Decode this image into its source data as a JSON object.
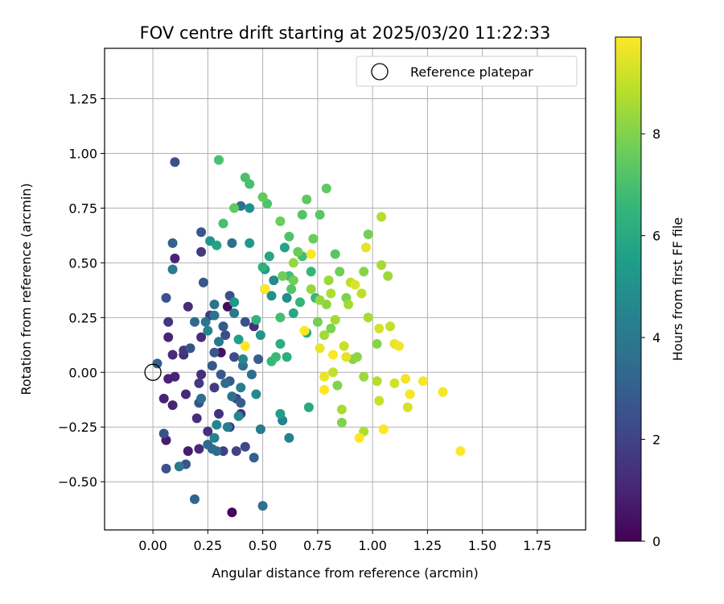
{
  "chart_data": {
    "type": "scatter",
    "title": "FOV centre drift starting at 2025/03/20 11:22:33",
    "xlabel": "Angular distance from reference (arcmin)",
    "ylabel": "Rotation from reference (arcmin)",
    "xlim": [
      -0.22,
      1.97
    ],
    "ylim": [
      -0.72,
      1.48
    ],
    "xticks": [
      "0.00",
      "0.25",
      "0.50",
      "0.75",
      "1.00",
      "1.25",
      "1.50",
      "1.75"
    ],
    "xtick_values": [
      0.0,
      0.25,
      0.5,
      0.75,
      1.0,
      1.25,
      1.5,
      1.75
    ],
    "yticks": [
      "−0.50",
      "−0.25",
      "0.00",
      "0.25",
      "0.50",
      "0.75",
      "1.00",
      "1.25"
    ],
    "ytick_values": [
      -0.5,
      -0.25,
      0.0,
      0.25,
      0.5,
      0.75,
      1.0,
      1.25
    ],
    "grid": true,
    "legend": {
      "placement": "top-right",
      "entries": [
        {
          "label": "Reference platepar",
          "marker": "open-circle"
        }
      ]
    },
    "reference_point": {
      "x": 0.0,
      "y": 0.0
    },
    "colorbar": {
      "label": "Hours from first FF file",
      "colormap": "viridis",
      "range": [
        0,
        9.9
      ],
      "ticks": [
        "0",
        "2",
        "4",
        "6",
        "8"
      ],
      "tick_values": [
        0,
        2,
        4,
        6,
        8
      ]
    },
    "colormap_stops": [
      "#440154",
      "#482878",
      "#3e4989",
      "#31688e",
      "#26828e",
      "#1f9e89",
      "#35b779",
      "#6ece58",
      "#b5de2b",
      "#fde725"
    ],
    "series": [
      {
        "color_by": "hours",
        "points": [
          [
            0.36,
            -0.64,
            0.2
          ],
          [
            0.34,
            0.3,
            0.3
          ],
          [
            0.31,
            0.09,
            0.4
          ],
          [
            0.06,
            -0.31,
            0.8
          ],
          [
            0.16,
            -0.36,
            0.8
          ],
          [
            0.05,
            -0.12,
            1.0
          ],
          [
            0.07,
            -0.03,
            1.0
          ],
          [
            0.1,
            -0.02,
            1.0
          ],
          [
            0.09,
            -0.15,
            1.0
          ],
          [
            0.07,
            0.16,
            1.0
          ],
          [
            0.1,
            0.52,
            1.0
          ],
          [
            0.15,
            -0.1,
            1.2
          ],
          [
            0.21,
            -0.35,
            1.2
          ],
          [
            0.2,
            -0.21,
            1.3
          ],
          [
            0.22,
            -0.01,
            1.3
          ],
          [
            0.09,
            0.08,
            1.3
          ],
          [
            0.14,
            0.08,
            1.3
          ],
          [
            0.16,
            0.3,
            1.3
          ],
          [
            0.22,
            0.16,
            1.3
          ],
          [
            0.25,
            -0.27,
            1.4
          ],
          [
            0.3,
            -0.19,
            1.4
          ],
          [
            0.35,
            -0.25,
            1.4
          ],
          [
            0.4,
            -0.19,
            1.4
          ],
          [
            0.46,
            0.21,
            1.4
          ],
          [
            0.07,
            0.23,
            1.6
          ],
          [
            0.14,
            0.1,
            1.6
          ],
          [
            0.21,
            -0.05,
            1.7
          ],
          [
            0.22,
            0.55,
            1.7
          ],
          [
            0.26,
            0.26,
            1.8
          ],
          [
            0.28,
            -0.07,
            1.8
          ],
          [
            0.32,
            -0.36,
            1.9
          ],
          [
            0.38,
            -0.36,
            2.0
          ],
          [
            0.38,
            -0.12,
            2.1
          ],
          [
            0.42,
            -0.34,
            2.2
          ],
          [
            0.37,
            0.07,
            2.3
          ],
          [
            0.33,
            0.17,
            2.3
          ],
          [
            0.35,
            0.35,
            2.4
          ],
          [
            0.42,
            0.23,
            2.4
          ],
          [
            0.06,
            0.34,
            2.5
          ],
          [
            0.05,
            -0.28,
            2.5
          ],
          [
            0.06,
            -0.44,
            2.5
          ],
          [
            0.1,
            0.96,
            2.5
          ],
          [
            0.15,
            -0.42,
            2.6
          ],
          [
            0.17,
            0.11,
            2.6
          ],
          [
            0.21,
            -0.14,
            2.6
          ],
          [
            0.22,
            0.64,
            2.7
          ],
          [
            0.23,
            0.41,
            2.7
          ],
          [
            0.27,
            0.03,
            2.7
          ],
          [
            0.28,
            0.09,
            2.7
          ],
          [
            0.31,
            -0.01,
            2.8
          ],
          [
            0.32,
            0.21,
            2.8
          ],
          [
            0.35,
            -0.04,
            2.8
          ],
          [
            0.4,
            -0.14,
            2.9
          ],
          [
            0.46,
            -0.39,
            3.0
          ],
          [
            0.48,
            0.06,
            3.0
          ],
          [
            0.02,
            0.04,
            3.1
          ],
          [
            0.09,
            0.59,
            3.1
          ],
          [
            0.19,
            -0.58,
            3.2
          ],
          [
            0.19,
            0.23,
            3.3
          ],
          [
            0.25,
            -0.33,
            3.4
          ],
          [
            0.27,
            -0.35,
            3.4
          ],
          [
            0.29,
            -0.36,
            3.5
          ],
          [
            0.33,
            -0.05,
            3.5
          ],
          [
            0.36,
            -0.11,
            3.6
          ],
          [
            0.41,
            0.03,
            3.6
          ],
          [
            0.45,
            -0.01,
            3.6
          ],
          [
            0.5,
            -0.61,
            3.7
          ],
          [
            0.22,
            -0.12,
            3.7
          ],
          [
            0.36,
            0.59,
            3.7
          ],
          [
            0.4,
            0.76,
            3.7
          ],
          [
            0.28,
            0.26,
            3.8
          ],
          [
            0.28,
            0.31,
            3.8
          ],
          [
            0.24,
            0.23,
            3.9
          ],
          [
            0.3,
            0.14,
            4.0
          ],
          [
            0.37,
            0.27,
            4.0
          ],
          [
            0.12,
            -0.43,
            4.0
          ],
          [
            0.09,
            0.47,
            4.1
          ],
          [
            0.49,
            -0.26,
            4.1
          ],
          [
            0.51,
            0.38,
            4.2
          ],
          [
            0.34,
            -0.25,
            4.2
          ],
          [
            0.28,
            -0.3,
            4.3
          ],
          [
            0.4,
            -0.07,
            4.3
          ],
          [
            0.59,
            -0.22,
            4.4
          ],
          [
            0.62,
            -0.3,
            4.4
          ],
          [
            0.25,
            0.19,
            4.5
          ],
          [
            0.29,
            -0.24,
            4.5
          ],
          [
            0.39,
            -0.2,
            4.6
          ],
          [
            0.41,
            0.06,
            4.6
          ],
          [
            0.47,
            -0.1,
            4.7
          ],
          [
            0.55,
            0.42,
            4.7
          ],
          [
            0.61,
            0.34,
            4.8
          ],
          [
            0.44,
            0.75,
            4.9
          ],
          [
            0.54,
            0.35,
            5.0
          ],
          [
            0.49,
            0.17,
            5.1
          ],
          [
            0.26,
            0.6,
            5.2
          ],
          [
            0.37,
            0.32,
            5.2
          ],
          [
            0.44,
            0.59,
            5.3
          ],
          [
            0.51,
            0.47,
            5.4
          ],
          [
            0.58,
            -0.19,
            5.5
          ],
          [
            0.39,
            0.15,
            5.6
          ],
          [
            0.29,
            0.58,
            5.7
          ],
          [
            0.6,
            0.57,
            5.7
          ],
          [
            0.53,
            0.53,
            5.8
          ],
          [
            0.64,
            0.27,
            5.9
          ],
          [
            0.71,
            -0.16,
            6.0
          ],
          [
            0.7,
            0.18,
            6.1
          ],
          [
            0.61,
            0.07,
            6.2
          ],
          [
            0.58,
            0.13,
            6.2
          ],
          [
            0.5,
            0.48,
            6.3
          ],
          [
            0.47,
            0.24,
            6.4
          ],
          [
            0.67,
            0.32,
            6.5
          ],
          [
            0.72,
            0.46,
            6.5
          ],
          [
            0.74,
            0.34,
            6.6
          ],
          [
            0.54,
            0.05,
            6.6
          ],
          [
            0.56,
            0.07,
            6.7
          ],
          [
            0.62,
            0.44,
            6.8
          ],
          [
            0.68,
            0.53,
            6.9
          ],
          [
            0.58,
            0.25,
            6.9
          ],
          [
            0.3,
            0.97,
            7.0
          ],
          [
            0.32,
            0.68,
            7.0
          ],
          [
            0.44,
            0.86,
            7.0
          ],
          [
            0.42,
            0.89,
            7.0
          ],
          [
            0.52,
            0.77,
            7.1
          ],
          [
            0.62,
            0.62,
            7.1
          ],
          [
            0.63,
            0.38,
            7.2
          ],
          [
            0.68,
            0.72,
            7.2
          ],
          [
            0.76,
            0.72,
            7.3
          ],
          [
            0.83,
            0.54,
            7.3
          ],
          [
            0.7,
            0.79,
            7.4
          ],
          [
            0.79,
            0.84,
            7.4
          ],
          [
            0.37,
            0.75,
            7.4
          ],
          [
            0.5,
            0.8,
            7.5
          ],
          [
            0.58,
            0.69,
            7.6
          ],
          [
            0.66,
            0.55,
            7.6
          ],
          [
            0.73,
            0.61,
            7.6
          ],
          [
            0.64,
            0.42,
            7.7
          ],
          [
            0.59,
            0.44,
            7.7
          ],
          [
            0.85,
            0.46,
            7.7
          ],
          [
            0.98,
            0.63,
            7.8
          ],
          [
            0.75,
            0.23,
            7.8
          ],
          [
            0.81,
            0.2,
            7.9
          ],
          [
            0.88,
            0.34,
            7.9
          ],
          [
            0.84,
            -0.06,
            8.0
          ],
          [
            0.86,
            -0.23,
            8.0
          ],
          [
            0.91,
            0.06,
            8.1
          ],
          [
            0.96,
            0.46,
            8.1
          ],
          [
            1.02,
            0.13,
            8.1
          ],
          [
            0.93,
            0.07,
            8.2
          ],
          [
            0.79,
            0.31,
            8.2
          ],
          [
            0.76,
            0.33,
            8.3
          ],
          [
            0.72,
            0.38,
            8.3
          ],
          [
            0.64,
            0.5,
            8.3
          ],
          [
            0.8,
            0.42,
            8.4
          ],
          [
            0.96,
            -0.02,
            8.4
          ],
          [
            1.07,
            0.44,
            8.4
          ],
          [
            0.78,
            0.17,
            8.5
          ],
          [
            0.83,
            0.24,
            8.5
          ],
          [
            0.89,
            0.31,
            8.5
          ],
          [
            0.98,
            0.25,
            8.6
          ],
          [
            1.04,
            0.49,
            8.6
          ],
          [
            0.86,
            -0.17,
            8.6
          ],
          [
            0.81,
            0.36,
            8.7
          ],
          [
            0.96,
            -0.27,
            8.7
          ],
          [
            1.02,
            -0.04,
            8.8
          ],
          [
            1.04,
            0.71,
            8.8
          ],
          [
            0.9,
            0.41,
            8.9
          ],
          [
            0.95,
            0.36,
            8.9
          ],
          [
            1.08,
            0.21,
            9.0
          ],
          [
            0.82,
            0.0,
            9.0
          ],
          [
            0.87,
            0.12,
            9.1
          ],
          [
            1.03,
            -0.13,
            9.1
          ],
          [
            1.05,
            -0.26,
            9.2
          ],
          [
            1.1,
            -0.05,
            9.2
          ],
          [
            1.16,
            -0.16,
            9.3
          ],
          [
            1.03,
            0.2,
            9.3
          ],
          [
            0.92,
            0.4,
            9.4
          ],
          [
            0.97,
            0.57,
            9.5
          ],
          [
            0.88,
            0.07,
            9.5
          ],
          [
            0.76,
            0.11,
            9.6
          ],
          [
            0.78,
            -0.02,
            9.6
          ],
          [
            1.1,
            0.13,
            9.6
          ],
          [
            1.12,
            0.12,
            9.7
          ],
          [
            1.15,
            -0.03,
            9.7
          ],
          [
            1.17,
            -0.1,
            9.8
          ],
          [
            1.23,
            -0.04,
            9.8
          ],
          [
            1.32,
            -0.09,
            9.8
          ],
          [
            1.4,
            -0.36,
            9.9
          ],
          [
            0.51,
            0.38,
            9.9
          ],
          [
            0.69,
            0.19,
            9.9
          ],
          [
            0.82,
            0.08,
            9.9
          ],
          [
            0.94,
            -0.3,
            9.9
          ],
          [
            1.05,
            -0.26,
            9.9
          ],
          [
            0.72,
            0.54,
            9.9
          ],
          [
            0.42,
            0.12,
            9.9
          ],
          [
            0.78,
            -0.08,
            9.9
          ]
        ]
      }
    ]
  }
}
